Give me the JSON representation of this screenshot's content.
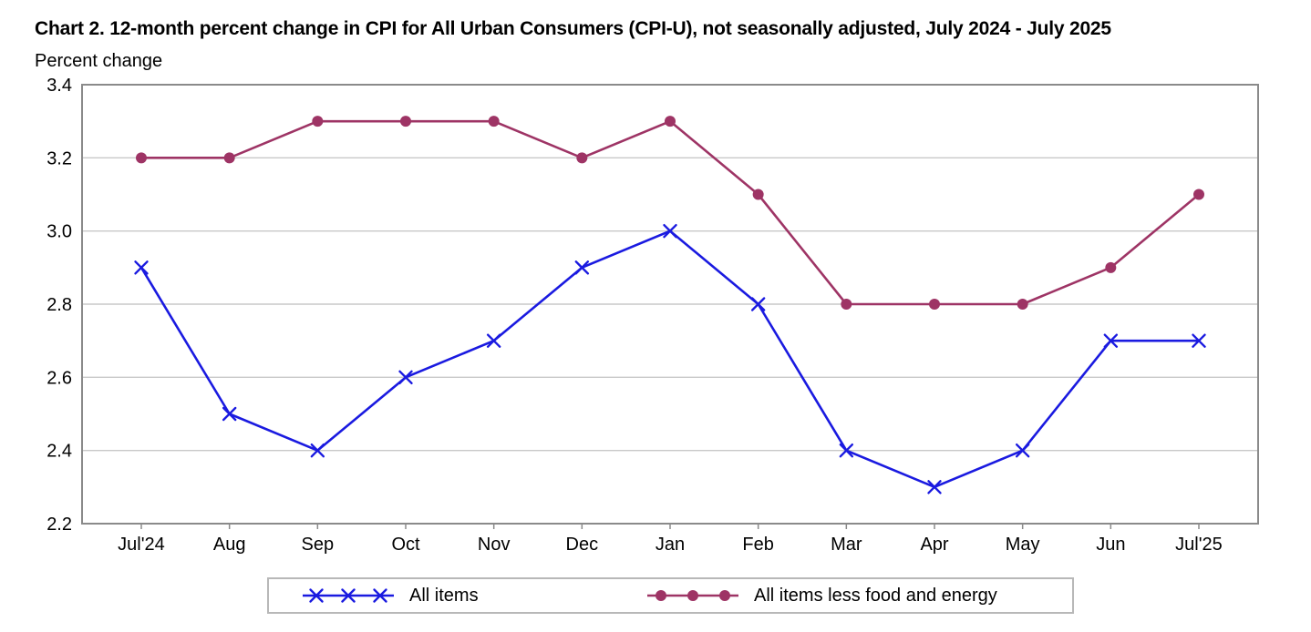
{
  "chart_data": {
    "type": "line",
    "title": "Chart 2. 12-month percent change in CPI for All Urban Consumers (CPI-U), not seasonally adjusted, July 2024 - July 2025",
    "ylabel": "Percent change",
    "categories": [
      "Jul'24",
      "Aug",
      "Sep",
      "Oct",
      "Nov",
      "Dec",
      "Jan",
      "Feb",
      "Mar",
      "Apr",
      "May",
      "Jun",
      "Jul'25"
    ],
    "series": [
      {
        "name": "All items",
        "marker": "x",
        "color": "#1a1ae0",
        "values": [
          2.9,
          2.5,
          2.4,
          2.6,
          2.7,
          2.9,
          3.0,
          2.8,
          2.4,
          2.3,
          2.4,
          2.7,
          2.7
        ]
      },
      {
        "name": "All items less food and energy",
        "marker": "circle",
        "color": "#9e3465",
        "values": [
          3.2,
          3.2,
          3.3,
          3.3,
          3.3,
          3.2,
          3.3,
          3.1,
          2.8,
          2.8,
          2.8,
          2.9,
          3.1
        ]
      }
    ],
    "ylim": [
      2.2,
      3.4
    ],
    "ytick_step": 0.2,
    "ytick_labels": [
      "2.2",
      "2.4",
      "2.6",
      "2.8",
      "3.0",
      "3.2",
      "3.4"
    ],
    "grid": "horizontal",
    "legend_position": "bottom"
  },
  "colors": {
    "grid": "#c9c9c9",
    "frame": "#8a8a8a",
    "text": "#000000"
  }
}
